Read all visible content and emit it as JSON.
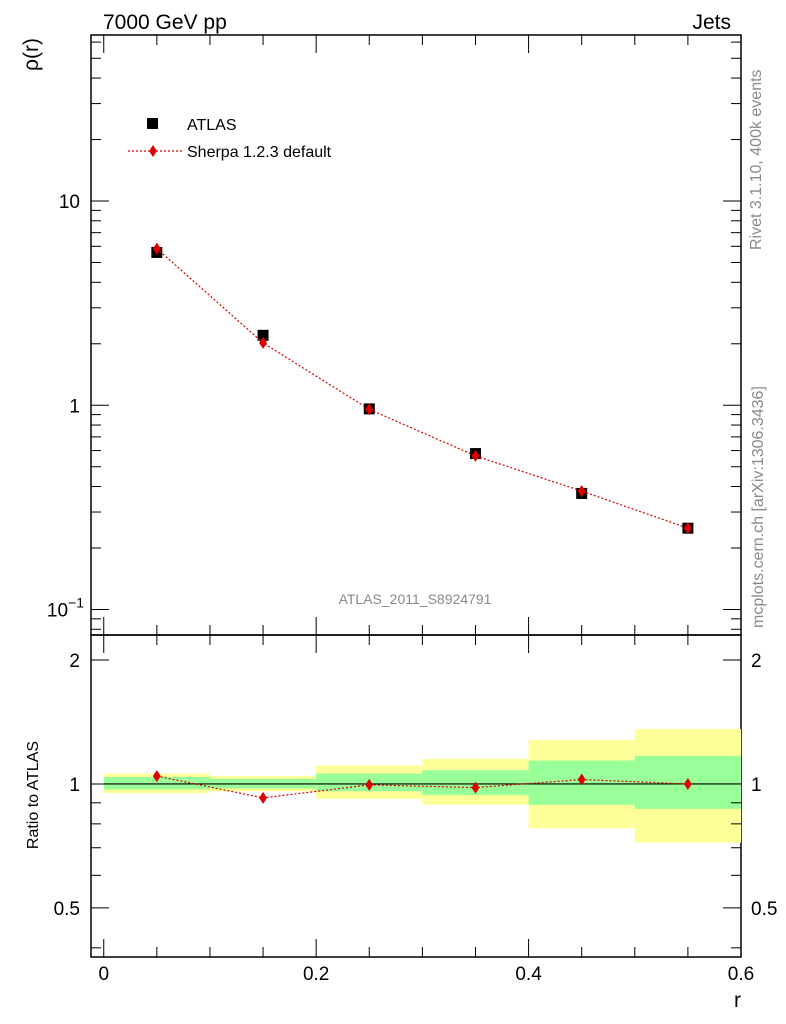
{
  "header": {
    "left": "7000 GeV pp",
    "right": "Jets"
  },
  "side_text": {
    "rivet": "Rivet 3.1.10,  400k events",
    "mcplots": "mcplots.cern.ch [arXiv:1306.3436]"
  },
  "analysis_label": "ATLAS_2011_S8924791",
  "legend": {
    "data": "ATLAS",
    "mc": "Sherpa 1.2.3 default"
  },
  "colors": {
    "data": "#000000",
    "mc": "#dd0000",
    "band_inner": "#99ff99",
    "band_outer": "#ffff99"
  },
  "chart_data": [
    {
      "type": "scatter",
      "panel": "main",
      "ylabel": "ρ(r)",
      "xlabel": "",
      "xlim": [
        -0.012,
        0.6
      ],
      "ylim": [
        0.075,
        65
      ],
      "yscale": "log",
      "ytick_labels": [
        {
          "value": 0.1,
          "base": "10",
          "exp": "−1"
        },
        {
          "value": 1,
          "base": "1",
          "exp": ""
        },
        {
          "value": 10,
          "base": "10",
          "exp": ""
        }
      ],
      "series": [
        {
          "name": "ATLAS",
          "marker": "square",
          "x": [
            0.05,
            0.15,
            0.25,
            0.35,
            0.45,
            0.55
          ],
          "y": [
            5.6,
            2.2,
            0.96,
            0.58,
            0.37,
            0.25
          ]
        },
        {
          "name": "Sherpa 1.2.3 default",
          "marker": "diamond",
          "line": "dotted",
          "x": [
            0.05,
            0.15,
            0.25,
            0.35,
            0.45,
            0.55
          ],
          "y": [
            5.85,
            2.02,
            0.955,
            0.565,
            0.38,
            0.25
          ]
        }
      ],
      "legend_position": "top-left"
    },
    {
      "type": "scatter",
      "panel": "ratio",
      "ylabel": "Ratio to ATLAS",
      "xlabel": "r",
      "xlim": [
        -0.012,
        0.6
      ],
      "ylim": [
        0.38,
        2.3
      ],
      "yscale": "log",
      "xticks": [
        "0",
        "0.2",
        "0.4",
        "0.6"
      ],
      "xtick_values": [
        0,
        0.2,
        0.4,
        0.6
      ],
      "yticks": [
        "0.5",
        "1",
        "2"
      ],
      "ytick_values": [
        0.5,
        1,
        2
      ],
      "bands": [
        {
          "xlo": 0.0,
          "xhi": 0.1,
          "inner": [
            0.97,
            1.04
          ],
          "outer": [
            0.95,
            1.06
          ]
        },
        {
          "xlo": 0.1,
          "xhi": 0.2,
          "inner": [
            0.975,
            1.03
          ],
          "outer": [
            0.96,
            1.045
          ]
        },
        {
          "xlo": 0.2,
          "xhi": 0.3,
          "inner": [
            0.96,
            1.06
          ],
          "outer": [
            0.92,
            1.11
          ]
        },
        {
          "xlo": 0.3,
          "xhi": 0.4,
          "inner": [
            0.94,
            1.08
          ],
          "outer": [
            0.89,
            1.15
          ]
        },
        {
          "xlo": 0.4,
          "xhi": 0.5,
          "inner": [
            0.89,
            1.14
          ],
          "outer": [
            0.78,
            1.28
          ]
        },
        {
          "xlo": 0.5,
          "xhi": 0.6,
          "inner": [
            0.87,
            1.17
          ],
          "outer": [
            0.72,
            1.36
          ]
        }
      ],
      "series": [
        {
          "name": "Sherpa 1.2.3 default",
          "marker": "diamond",
          "line": "dotted",
          "x": [
            0.05,
            0.15,
            0.25,
            0.35,
            0.45,
            0.55
          ],
          "y": [
            1.045,
            0.925,
            0.995,
            0.98,
            1.025,
            1.0
          ]
        }
      ],
      "reference_line": 1
    }
  ]
}
